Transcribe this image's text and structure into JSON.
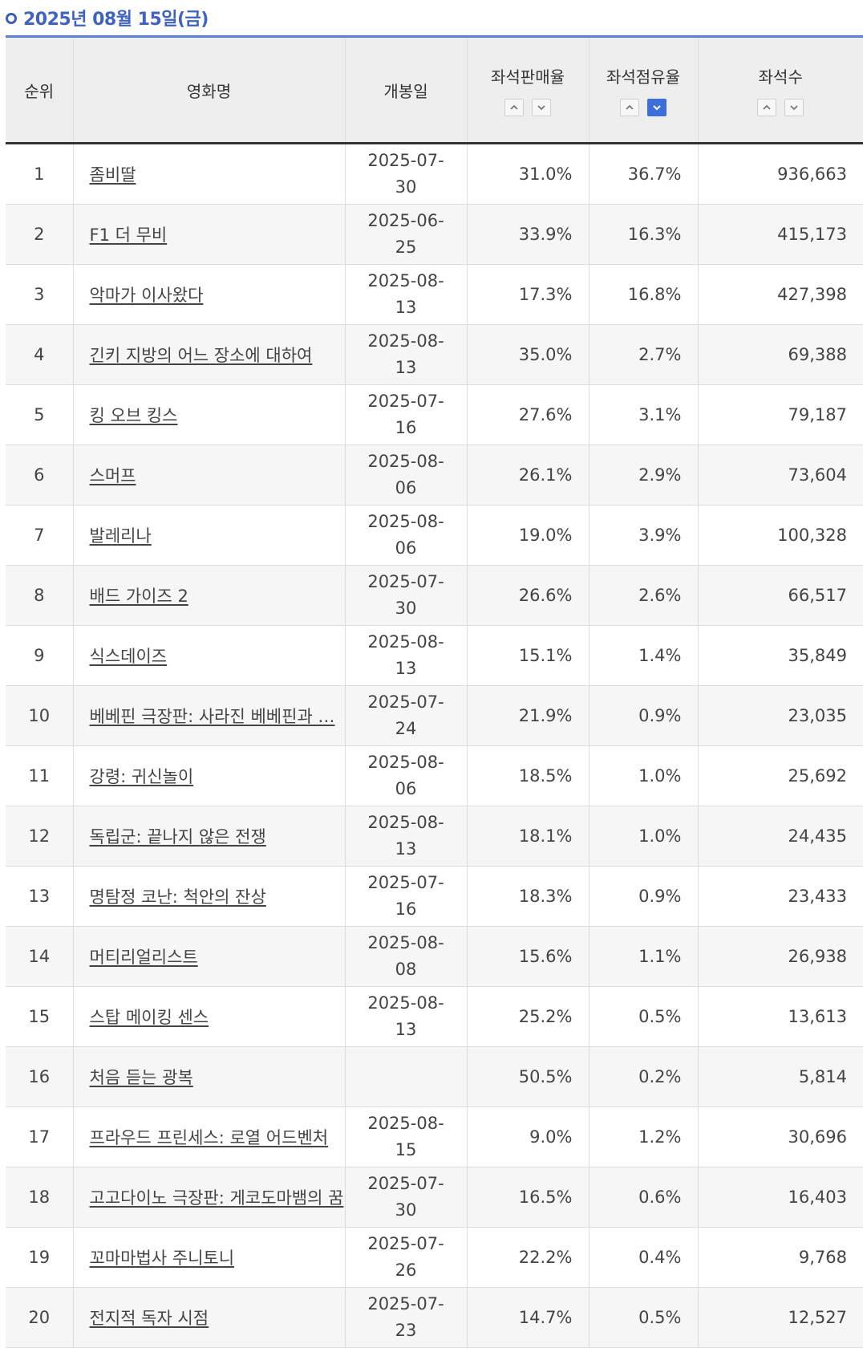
{
  "header": {
    "date_label": "2025년 08월 15일(금)"
  },
  "columns": {
    "rank": "순위",
    "title": "영화명",
    "release": "개봉일",
    "sales_rate": "좌석판매율",
    "share_rate": "좌석점유율",
    "seats": "좌석수"
  },
  "sort_state": {
    "column": "좌석점유율",
    "direction": "descending"
  },
  "rows": [
    {
      "rank": "1",
      "title": "좀비딸",
      "release": "2025-07-30",
      "sales_rate": "31.0%",
      "share_rate": "36.7%",
      "seats": "936,663"
    },
    {
      "rank": "2",
      "title": "F1 더 무비",
      "release": "2025-06-25",
      "sales_rate": "33.9%",
      "share_rate": "16.3%",
      "seats": "415,173"
    },
    {
      "rank": "3",
      "title": "악마가 이사왔다",
      "release": "2025-08-13",
      "sales_rate": "17.3%",
      "share_rate": "16.8%",
      "seats": "427,398"
    },
    {
      "rank": "4",
      "title": "긴키 지방의 어느 장소에 대하여",
      "release": "2025-08-13",
      "sales_rate": "35.0%",
      "share_rate": "2.7%",
      "seats": "69,388"
    },
    {
      "rank": "5",
      "title": "킹 오브 킹스",
      "release": "2025-07-16",
      "sales_rate": "27.6%",
      "share_rate": "3.1%",
      "seats": "79,187"
    },
    {
      "rank": "6",
      "title": "스머프",
      "release": "2025-08-06",
      "sales_rate": "26.1%",
      "share_rate": "2.9%",
      "seats": "73,604"
    },
    {
      "rank": "7",
      "title": "발레리나",
      "release": "2025-08-06",
      "sales_rate": "19.0%",
      "share_rate": "3.9%",
      "seats": "100,328"
    },
    {
      "rank": "8",
      "title": "배드 가이즈 2",
      "release": "2025-07-30",
      "sales_rate": "26.6%",
      "share_rate": "2.6%",
      "seats": "66,517"
    },
    {
      "rank": "9",
      "title": "식스데이즈",
      "release": "2025-08-13",
      "sales_rate": "15.1%",
      "share_rate": "1.4%",
      "seats": "35,849"
    },
    {
      "rank": "10",
      "title": "베베핀 극장판: 사라진 베베핀과 …",
      "release": "2025-07-24",
      "sales_rate": "21.9%",
      "share_rate": "0.9%",
      "seats": "23,035"
    },
    {
      "rank": "11",
      "title": "강령: 귀신놀이",
      "release": "2025-08-06",
      "sales_rate": "18.5%",
      "share_rate": "1.0%",
      "seats": "25,692"
    },
    {
      "rank": "12",
      "title": "독립군: 끝나지 않은 전쟁",
      "release": "2025-08-13",
      "sales_rate": "18.1%",
      "share_rate": "1.0%",
      "seats": "24,435"
    },
    {
      "rank": "13",
      "title": "명탐정 코난: 척안의 잔상",
      "release": "2025-07-16",
      "sales_rate": "18.3%",
      "share_rate": "0.9%",
      "seats": "23,433"
    },
    {
      "rank": "14",
      "title": "머티리얼리스트",
      "release": "2025-08-08",
      "sales_rate": "15.6%",
      "share_rate": "1.1%",
      "seats": "26,938"
    },
    {
      "rank": "15",
      "title": "스탑 메이킹 센스",
      "release": "2025-08-13",
      "sales_rate": "25.2%",
      "share_rate": "0.5%",
      "seats": "13,613"
    },
    {
      "rank": "16",
      "title": "처음 듣는 광복",
      "release": "",
      "sales_rate": "50.5%",
      "share_rate": "0.2%",
      "seats": "5,814"
    },
    {
      "rank": "17",
      "title": "프라우드 프린세스: 로열 어드벤처",
      "release": "2025-08-15",
      "sales_rate": "9.0%",
      "share_rate": "1.2%",
      "seats": "30,696"
    },
    {
      "rank": "18",
      "title": "고고다이노 극장판: 게코도마뱀의 꿈",
      "release": "2025-07-30",
      "sales_rate": "16.5%",
      "share_rate": "0.6%",
      "seats": "16,403"
    },
    {
      "rank": "19",
      "title": "꼬마마법사 주니토니",
      "release": "2025-07-26",
      "sales_rate": "22.2%",
      "share_rate": "0.4%",
      "seats": "9,768"
    },
    {
      "rank": "20",
      "title": "전지적 독자 시점",
      "release": "2025-07-23",
      "sales_rate": "14.7%",
      "share_rate": "0.5%",
      "seats": "12,527"
    }
  ],
  "colors": {
    "accent": "#3f63c0",
    "sort_active": "#3d6fdc"
  }
}
